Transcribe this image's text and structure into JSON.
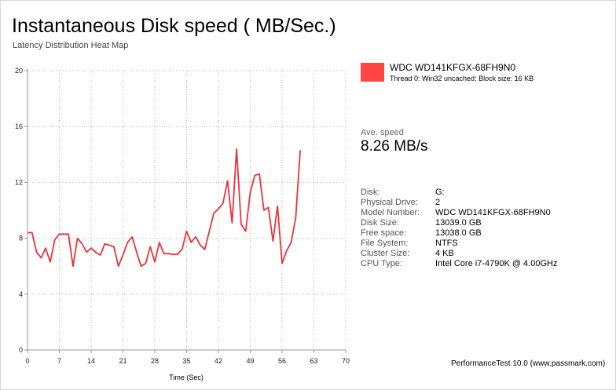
{
  "title": "Instantaneous Disk speed ( MB/Sec.)",
  "subtitle": "Latency Distribution Heat Map",
  "legend": {
    "name": "WDC WD141KFGX-68FH9N0",
    "detail": "Thread 0: Win32 uncached; Block size: 16 KB",
    "color": "#ff4444"
  },
  "average": {
    "label": "Ave. speed",
    "value": "8.26 MB/s"
  },
  "info": [
    {
      "label": "Disk:",
      "value": "G:"
    },
    {
      "label": "Physical Drive:",
      "value": "2"
    },
    {
      "label": "Model Number:",
      "value": "WDC WD141KFGX-68FH9N0"
    },
    {
      "label": "Disk Size:",
      "value": "13039.0 GB"
    },
    {
      "label": "Free space:",
      "value": "13038.0 GB"
    },
    {
      "label": "File System:",
      "value": "NTFS"
    },
    {
      "label": "Cluster Size:",
      "value": "4 KB"
    },
    {
      "label": "CPU Type:",
      "value": "Intel Core i7-4790K @ 4.00GHz"
    }
  ],
  "footer": "PerformanceTest 10.0 (www.passmark.com)",
  "chart_data": {
    "type": "line",
    "xlabel": "Time (Sec)",
    "ylabel": "",
    "xlim": [
      0,
      70
    ],
    "ylim": [
      0,
      20
    ],
    "xticks": [
      0,
      7,
      14,
      21,
      28,
      35,
      42,
      49,
      56,
      63,
      70
    ],
    "yticks": [
      0,
      4,
      8,
      12,
      16,
      20
    ],
    "grid": true,
    "line_color": "#e8343c",
    "series": [
      {
        "name": "WDC WD141KFGX-68FH9N0",
        "x": [
          0,
          1,
          2,
          3,
          4,
          5,
          6,
          7,
          8,
          9,
          10,
          11,
          12,
          13,
          14,
          15,
          16,
          17,
          18,
          19,
          20,
          21,
          22,
          23,
          24,
          25,
          26,
          27,
          28,
          29,
          30,
          31,
          32,
          33,
          34,
          35,
          36,
          37,
          38,
          39,
          40,
          41,
          42,
          43,
          44,
          45,
          46,
          47,
          48,
          49,
          50,
          51,
          52,
          53,
          54,
          55,
          56,
          57,
          58,
          59,
          60
        ],
        "y": [
          8.4,
          8.4,
          7.0,
          6.6,
          7.3,
          6.3,
          7.9,
          8.3,
          8.3,
          8.3,
          6.0,
          8.0,
          7.6,
          7.0,
          7.3,
          7.0,
          6.8,
          7.6,
          7.5,
          7.4,
          6.0,
          6.8,
          7.7,
          8.1,
          7.0,
          6.0,
          6.2,
          7.4,
          6.3,
          7.7,
          6.9,
          6.9,
          6.85,
          6.85,
          7.2,
          8.5,
          7.7,
          8.1,
          7.5,
          7.2,
          8.5,
          9.8,
          10.1,
          10.5,
          12.1,
          9.1,
          14.4,
          9.0,
          8.5,
          11.3,
          12.5,
          12.6,
          10.0,
          10.2,
          7.8,
          10.3,
          6.2,
          7.1,
          7.7,
          9.5,
          14.3
        ]
      }
    ]
  }
}
